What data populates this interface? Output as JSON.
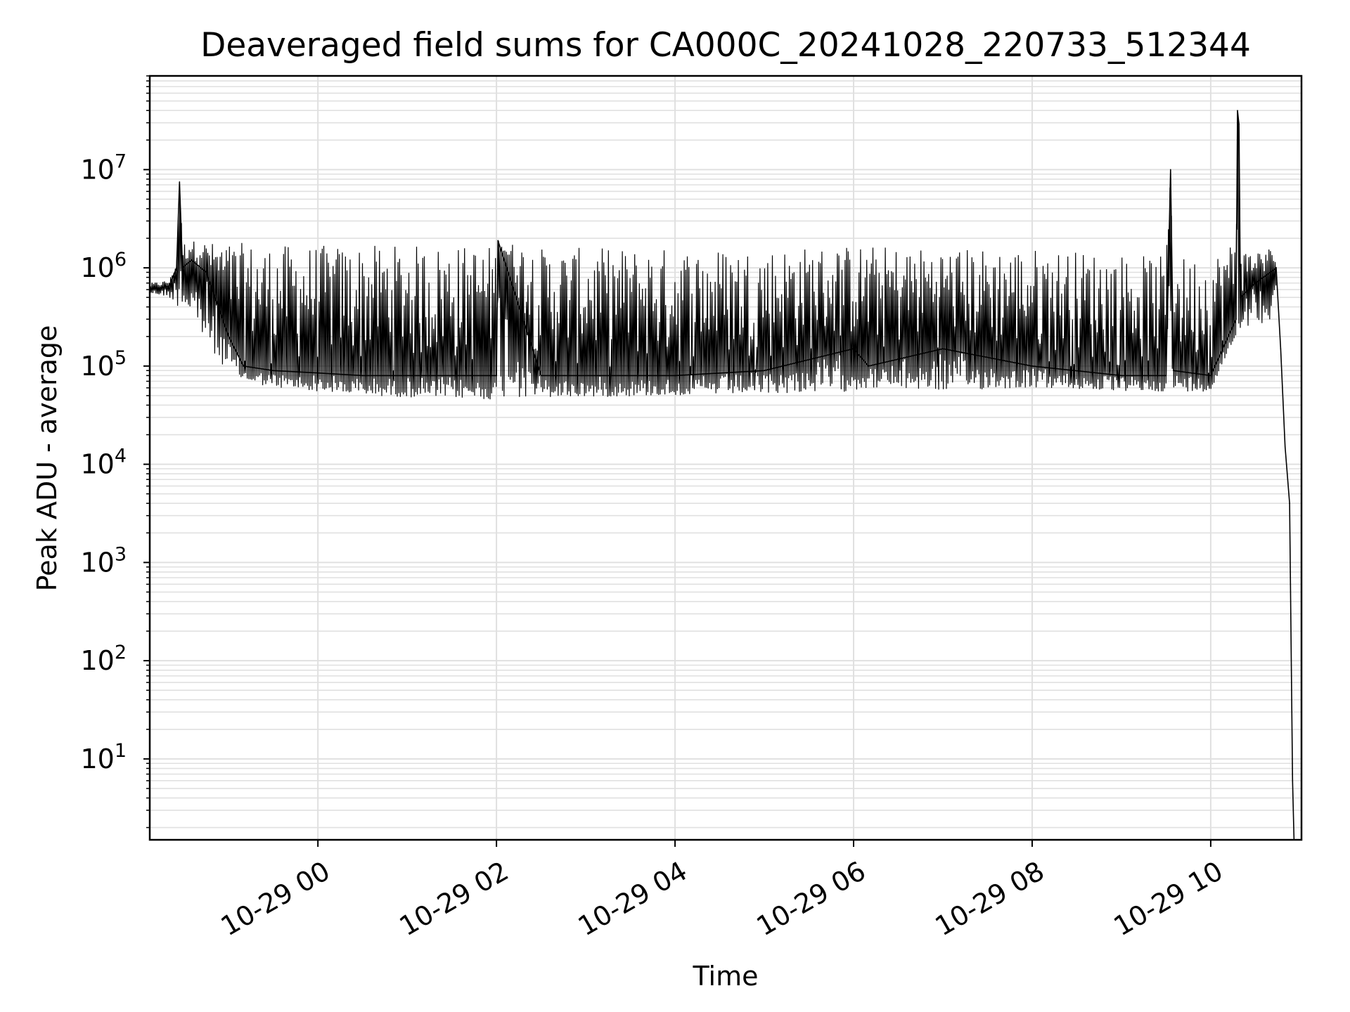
{
  "chart_data": {
    "type": "line",
    "title": "Deaveraged field sums for CA000C_20241028_220733_512344",
    "xlabel": "Time",
    "ylabel": "Peak ADU - average",
    "yscale": "log",
    "grid": true,
    "grid_color": "#e0e0e0",
    "line_color": "#000000",
    "xlim": [
      "2024-10-28 22:07",
      "2024-10-29 11:01"
    ],
    "ylim": [
      1.5,
      90000000
    ],
    "x_ticks": [
      {
        "value": "2024-10-29 00:00",
        "label": "10-29 00"
      },
      {
        "value": "2024-10-29 02:00",
        "label": "10-29 02"
      },
      {
        "value": "2024-10-29 04:00",
        "label": "10-29 04"
      },
      {
        "value": "2024-10-29 06:00",
        "label": "10-29 06"
      },
      {
        "value": "2024-10-29 08:00",
        "label": "10-29 08"
      },
      {
        "value": "2024-10-29 10:00",
        "label": "10-29 10"
      }
    ],
    "y_ticks": [
      {
        "value": 10,
        "base": "10",
        "exp": "1"
      },
      {
        "value": 100,
        "base": "10",
        "exp": "2"
      },
      {
        "value": 1000,
        "base": "10",
        "exp": "3"
      },
      {
        "value": 10000,
        "base": "10",
        "exp": "4"
      },
      {
        "value": 100000,
        "base": "10",
        "exp": "5"
      },
      {
        "value": 1000000,
        "base": "10",
        "exp": "6"
      },
      {
        "value": 10000000,
        "base": "10",
        "exp": "7"
      }
    ],
    "series": [
      {
        "x": [
          "2024-10-28 22:07",
          "2024-10-28 22:20",
          "2024-10-28 22:25",
          "2024-10-28 22:27",
          "2024-10-28 22:29",
          "2024-10-28 22:35",
          "2024-10-28 22:45",
          "2024-10-28 23:00",
          "2024-10-28 23:10",
          "2024-10-28 23:30",
          "2024-10-29 00:00",
          "2024-10-29 00:30",
          "2024-10-29 01:00",
          "2024-10-29 01:30",
          "2024-10-29 02:00",
          "2024-10-29 02:01",
          "2024-10-29 02:30",
          "2024-10-29 03:00",
          "2024-10-29 04:00",
          "2024-10-29 05:00",
          "2024-10-29 06:00",
          "2024-10-29 06:10",
          "2024-10-29 07:00",
          "2024-10-29 08:00",
          "2024-10-29 09:00",
          "2024-10-29 09:30",
          "2024-10-29 09:33",
          "2024-10-29 09:35",
          "2024-10-29 10:00",
          "2024-10-29 10:17",
          "2024-10-29 10:18",
          "2024-10-29 10:19",
          "2024-10-29 10:20",
          "2024-10-29 10:30",
          "2024-10-29 10:40",
          "2024-10-29 10:44",
          "2024-10-29 10:47",
          "2024-10-29 10:50",
          "2024-10-29 10:53",
          "2024-10-29 10:55",
          "2024-10-29 10:56"
        ],
        "y": [
          600000,
          650000,
          1000000,
          7500000,
          1000000,
          1200000,
          900000,
          200000,
          100000,
          90000,
          85000,
          80000,
          80000,
          80000,
          80000,
          1900000,
          80000,
          80000,
          80000,
          90000,
          150000,
          100000,
          150000,
          100000,
          80000,
          80000,
          10000000,
          90000,
          80000,
          300000,
          40000000,
          29000000,
          500000,
          700000,
          900000,
          1000000,
          150000,
          15000,
          4000,
          6,
          1.5
        ],
        "lower_envelope": [
          550000,
          500000,
          400000,
          400000,
          400000,
          300000,
          150000,
          90000,
          70000,
          60000,
          55000,
          50000,
          48000,
          47000,
          45000,
          45000,
          47000,
          48000,
          50000,
          52000,
          55000,
          60000,
          55000,
          60000,
          55000,
          55000,
          55000,
          55000,
          55000,
          200000,
          200000,
          200000,
          250000,
          250000,
          300000,
          600000,
          120000,
          12000,
          3000,
          5,
          1.5
        ],
        "upper_envelope": [
          700000,
          750000,
          1100000,
          7500000,
          1800000,
          1900000,
          1800000,
          1800000,
          1800000,
          1700000,
          1700000,
          1700000,
          1700000,
          1700000,
          1700000,
          1900000,
          1600000,
          1600000,
          1600000,
          1600000,
          1700000,
          1700000,
          1600000,
          1600000,
          1400000,
          1300000,
          10000000,
          1300000,
          1300000,
          2000000,
          40000000,
          29000000,
          1500000,
          1500000,
          1600000,
          1200000,
          800000,
          15000,
          4000,
          6,
          1.5
        ]
      }
    ]
  }
}
